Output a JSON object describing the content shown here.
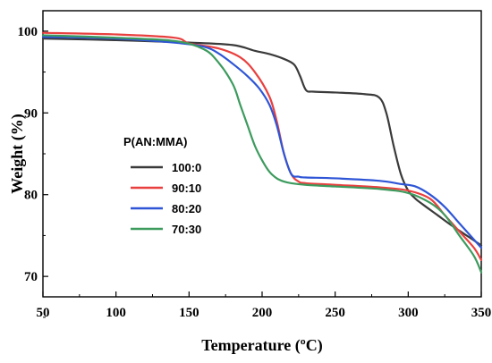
{
  "chart_data": {
    "type": "line",
    "title": "",
    "xlabel": "Temperature (ºC)",
    "ylabel": "Weight (%)",
    "xlim": [
      50,
      350
    ],
    "ylim": [
      67.5,
      102.5
    ],
    "xticks": [
      50,
      100,
      150,
      200,
      250,
      300,
      350
    ],
    "yticks": [
      70,
      80,
      90,
      100
    ],
    "grid": false,
    "legend": {
      "title": "P(AN:MMA)",
      "placement": "center-left"
    },
    "series": [
      {
        "name": "100:0",
        "color": "#3a3a3a",
        "x": [
          50,
          100,
          150,
          180,
          195,
          205,
          215,
          222,
          226,
          230,
          235,
          250,
          270,
          280,
          285,
          290,
          295,
          300,
          305,
          310,
          320,
          330,
          340,
          350
        ],
        "y": [
          99.1,
          98.9,
          98.6,
          98.3,
          97.6,
          97.2,
          96.6,
          95.9,
          94.5,
          92.8,
          92.6,
          92.5,
          92.3,
          91.9,
          90.0,
          86.0,
          82.5,
          80.5,
          79.5,
          78.8,
          77.5,
          76.2,
          75.0,
          73.8
        ]
      },
      {
        "name": "90:10",
        "color": "#e8403f",
        "x": [
          50,
          100,
          140,
          150,
          170,
          185,
          195,
          205,
          210,
          215,
          220,
          225,
          230,
          250,
          280,
          300,
          315,
          325,
          335,
          345,
          350
        ],
        "y": [
          99.8,
          99.6,
          99.2,
          98.5,
          97.9,
          96.8,
          95.0,
          92.0,
          89.0,
          85.0,
          82.5,
          81.6,
          81.4,
          81.2,
          80.9,
          80.5,
          79.5,
          77.5,
          75.5,
          73.5,
          72.0
        ]
      },
      {
        "name": "80:20",
        "color": "#2e55d6",
        "x": [
          50,
          100,
          140,
          160,
          170,
          180,
          190,
          198,
          205,
          210,
          215,
          220,
          225,
          230,
          250,
          280,
          295,
          305,
          315,
          325,
          335,
          345,
          350
        ],
        "y": [
          99.3,
          99.1,
          98.6,
          98.1,
          97.3,
          96.0,
          94.5,
          93.0,
          91.0,
          88.5,
          85.0,
          82.5,
          82.2,
          82.1,
          82.0,
          81.7,
          81.3,
          81.0,
          80.0,
          78.5,
          76.5,
          74.5,
          73.5
        ]
      },
      {
        "name": "70:30",
        "color": "#3d9b5e",
        "x": [
          50,
          100,
          140,
          160,
          170,
          180,
          185,
          190,
          195,
          200,
          205,
          210,
          215,
          220,
          230,
          250,
          280,
          300,
          315,
          325,
          335,
          345,
          350
        ],
        "y": [
          99.5,
          99.2,
          98.8,
          97.8,
          96.2,
          93.5,
          91.0,
          88.5,
          86.0,
          84.2,
          82.8,
          82.0,
          81.6,
          81.4,
          81.2,
          81.0,
          80.7,
          80.2,
          79.0,
          77.5,
          75.0,
          72.5,
          70.5
        ]
      }
    ]
  }
}
